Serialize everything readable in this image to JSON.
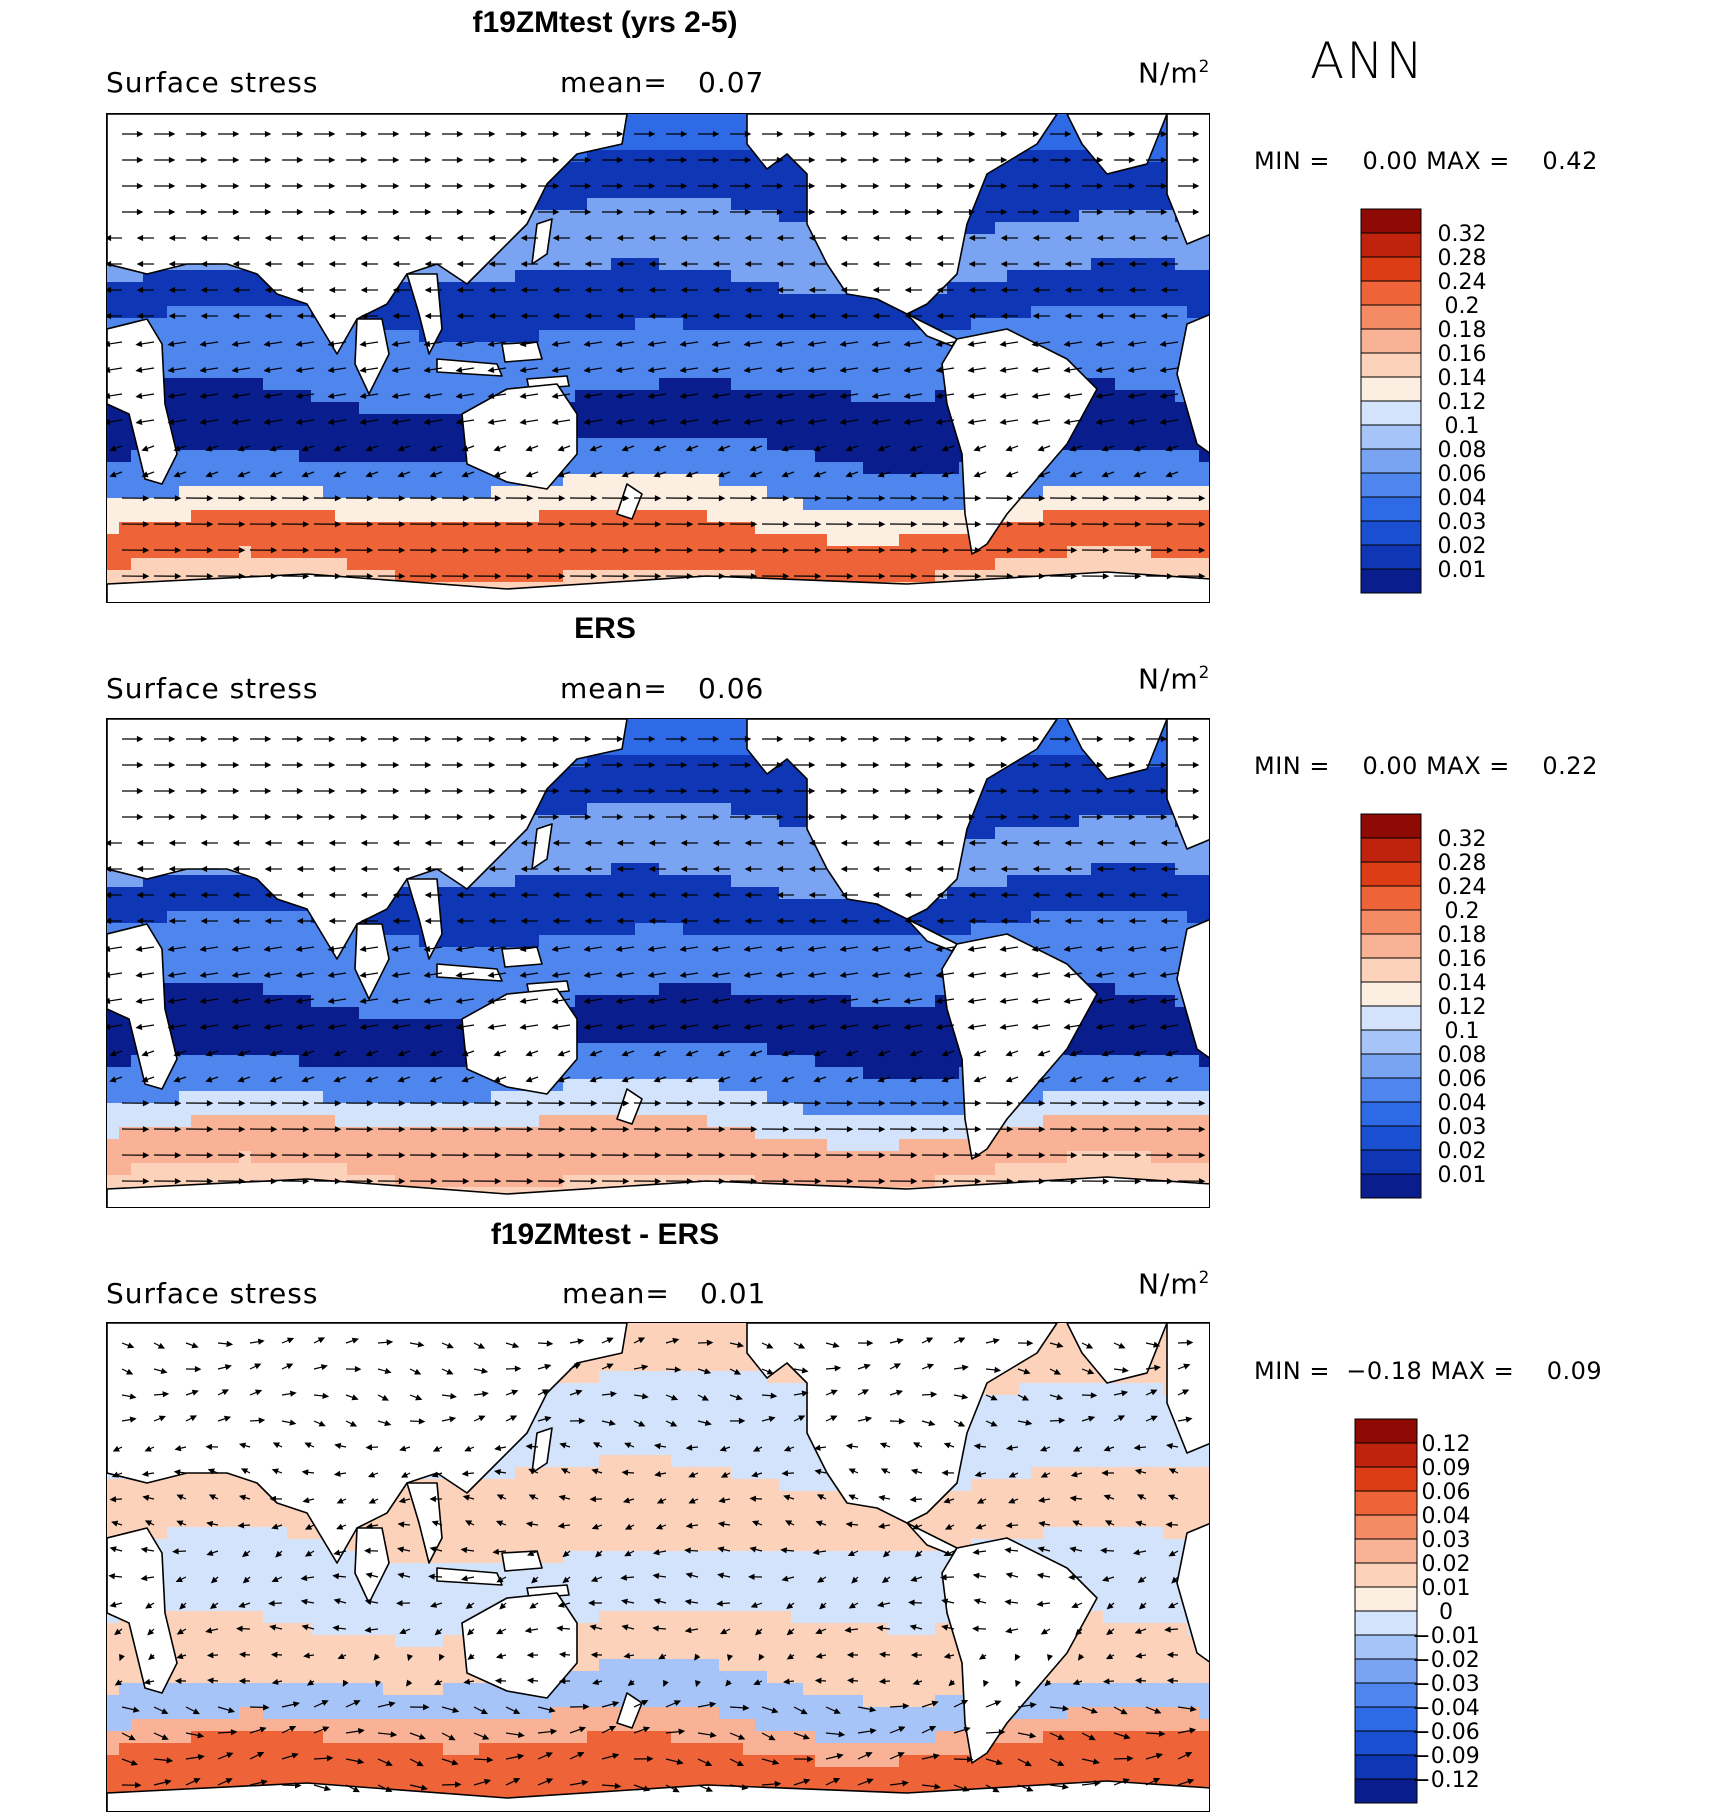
{
  "season": "ANN",
  "colors": {
    "pos_scale": [
      "#0a1d8c",
      "#0f36b4",
      "#1a4fd2",
      "#2e6ae6",
      "#4f86ee",
      "#7aa4f2",
      "#a6c4f7",
      "#d2e3fb",
      "#fdeee2",
      "#fcd2bb",
      "#f9b295",
      "#f58b65",
      "#ee6438",
      "#dd3d14",
      "#bf230d",
      "#8e0a05"
    ],
    "diff_scale": [
      "#0a1d8c",
      "#0f36b4",
      "#1a4fd2",
      "#2e6ae6",
      "#4f86ee",
      "#7aa4f2",
      "#a6c4f7",
      "#d2e3fb",
      "#fdeee2",
      "#fcd2bb",
      "#f9b295",
      "#f58b65",
      "#ee6438",
      "#dd3d14",
      "#bf230d",
      "#8e0a05"
    ],
    "land": "#ffffff",
    "coast": "#000000"
  },
  "panels": [
    {
      "title": "f19ZMtest (yrs 2-5)",
      "variable": "Surface stress",
      "mean_label": "mean=",
      "mean_value": "0.07",
      "units": "N/m",
      "units_sup": "2",
      "min_label": "MIN =",
      "min_value": "0.00",
      "max_label": "MAX =",
      "max_value": "0.42",
      "levels": [
        "0.32",
        "0.28",
        "0.24",
        "0.2",
        "0.18",
        "0.16",
        "0.14",
        "0.12",
        "0.1",
        "0.08",
        "0.06",
        "0.04",
        "0.03",
        "0.02",
        "0.01"
      ],
      "kind": "model"
    },
    {
      "title": "ERS",
      "variable": "Surface stress",
      "mean_label": "mean=",
      "mean_value": "0.06",
      "units": "N/m",
      "units_sup": "2",
      "min_label": "MIN =",
      "min_value": "0.00",
      "max_label": "MAX =",
      "max_value": "0.22",
      "levels": [
        "0.32",
        "0.28",
        "0.24",
        "0.2",
        "0.18",
        "0.16",
        "0.14",
        "0.12",
        "0.1",
        "0.08",
        "0.06",
        "0.04",
        "0.03",
        "0.02",
        "0.01"
      ],
      "kind": "obs"
    },
    {
      "title": "f19ZMtest - ERS",
      "variable": "Surface stress",
      "mean_label": "mean=",
      "mean_value": "0.01",
      "units": "N/m",
      "units_sup": "2",
      "min_label": "MIN =",
      "min_value": "−0.18",
      "max_label": "MAX =",
      "max_value": "0.09",
      "levels": [
        "0.12",
        "0.09",
        "0.06",
        "0.04",
        "0.03",
        "0.02",
        "0.01",
        "0",
        "−0.01",
        "−0.02",
        "−0.03",
        "−0.04",
        "−0.06",
        "−0.09",
        "−0.12"
      ],
      "kind": "diff"
    }
  ]
}
